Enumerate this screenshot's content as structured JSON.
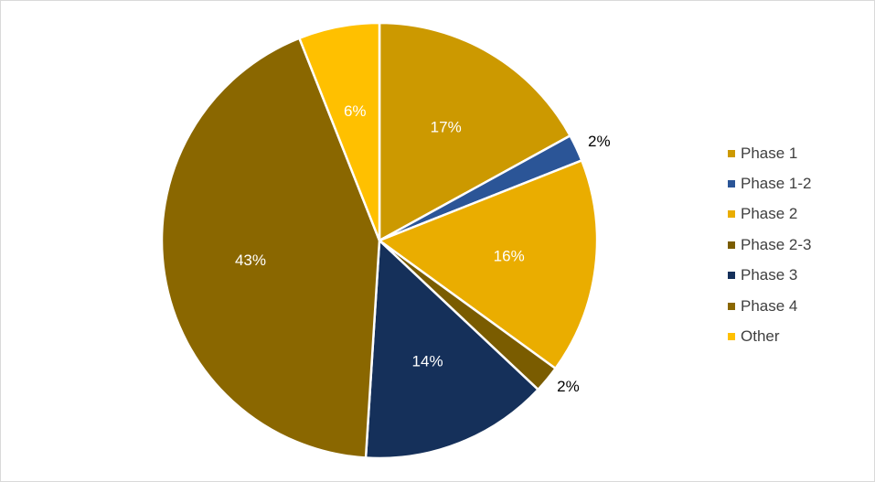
{
  "chart_data": {
    "type": "pie",
    "title": "",
    "legend_position": "right",
    "slices": [
      {
        "name": "Phase 1",
        "value": 17,
        "label": "17%",
        "color": "#CC9900",
        "label_color": "#ffffff",
        "label_outside": false
      },
      {
        "name": "Phase 1-2",
        "value": 2,
        "label": "2%",
        "color": "#2B5597",
        "label_color": "#000000",
        "label_outside": true
      },
      {
        "name": "Phase 2",
        "value": 16,
        "label": "16%",
        "color": "#EAAD00",
        "label_color": "#ffffff",
        "label_outside": false
      },
      {
        "name": "Phase 2-3",
        "value": 2,
        "label": "2%",
        "color": "#7A5C00",
        "label_color": "#000000",
        "label_outside": true
      },
      {
        "name": "Phase 3",
        "value": 14,
        "label": "14%",
        "color": "#15305A",
        "label_color": "#ffffff",
        "label_outside": false
      },
      {
        "name": "Phase 4",
        "value": 43,
        "label": "43%",
        "color": "#8A6700",
        "label_color": "#ffffff",
        "label_outside": false
      },
      {
        "name": "Other",
        "value": 6,
        "label": "6%",
        "color": "#FFC000",
        "label_color": "#ffffff",
        "label_outside": false
      }
    ]
  }
}
